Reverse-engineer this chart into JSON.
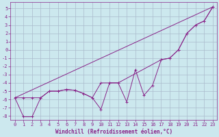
{
  "xlabel": "Windchill (Refroidissement éolien,°C)",
  "bg_color": "#cce8ee",
  "grid_color": "#aabbcc",
  "line_color": "#882288",
  "spine_color": "#882288",
  "x_ticks": [
    0,
    1,
    2,
    3,
    4,
    5,
    6,
    7,
    8,
    9,
    10,
    11,
    12,
    13,
    14,
    15,
    16,
    17,
    18,
    19,
    20,
    21,
    22,
    23
  ],
  "y_ticks": [
    5,
    4,
    3,
    2,
    1,
    0,
    -1,
    -2,
    -3,
    -4,
    -5,
    -6,
    -7,
    -8
  ],
  "ylim": [
    -8.5,
    5.8
  ],
  "xlim": [
    -0.5,
    23.5
  ],
  "series1_x": [
    0,
    1,
    2,
    3,
    4,
    5,
    6,
    7,
    8,
    9,
    10,
    11,
    12,
    13,
    14,
    15,
    16,
    17,
    18,
    19,
    20,
    21,
    22,
    23
  ],
  "series1_y": [
    -5.8,
    -8.1,
    -8.1,
    -5.8,
    -5.0,
    -5.0,
    -4.8,
    -4.9,
    -5.3,
    -5.8,
    -7.2,
    -4.0,
    -4.0,
    -6.3,
    -2.4,
    -5.5,
    -4.3,
    -1.2,
    -1.0,
    0.0,
    2.0,
    3.0,
    3.5,
    5.2
  ],
  "series2_x": [
    0,
    23
  ],
  "series2_y": [
    -5.8,
    5.2
  ],
  "series3_x": [
    0,
    1,
    2,
    3,
    4,
    5,
    6,
    7,
    8,
    9,
    10,
    11,
    12,
    17,
    18,
    19,
    20,
    21,
    22,
    23
  ],
  "series3_y": [
    -5.8,
    -5.8,
    -5.8,
    -5.8,
    -5.0,
    -5.0,
    -4.8,
    -4.9,
    -5.3,
    -5.8,
    -4.0,
    -4.0,
    -4.0,
    -1.2,
    -1.0,
    0.0,
    2.0,
    3.0,
    3.5,
    5.2
  ],
  "xlabel_fontsize": 5.5,
  "tick_fontsize": 5.0,
  "lw": 0.7,
  "marker_size": 2.5
}
